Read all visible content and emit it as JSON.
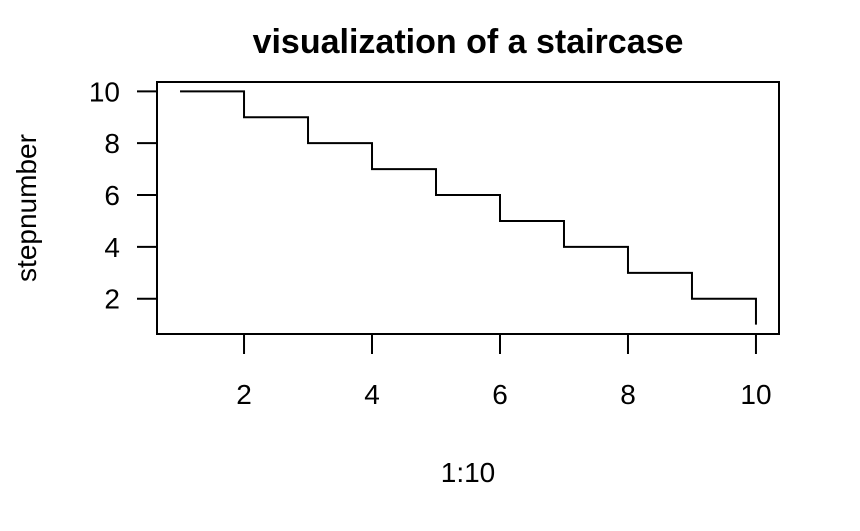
{
  "chart_data": {
    "type": "line",
    "title": "visualization of a staircase",
    "xlabel": "1:10",
    "ylabel": "stepnumber",
    "x": [
      1,
      2,
      3,
      4,
      5,
      6,
      7,
      8,
      9,
      10
    ],
    "series": [
      {
        "values": [
          10,
          9,
          8,
          7,
          6,
          5,
          4,
          3,
          2,
          1
        ]
      }
    ],
    "step": true,
    "xlim": [
      0.64,
      10.36
    ],
    "ylim": [
      0.64,
      10.36
    ],
    "xticks": [
      2,
      4,
      6,
      8,
      10
    ],
    "yticks": [
      2,
      4,
      6,
      8,
      10
    ],
    "grid": false,
    "legend": "none",
    "line_color": "#000000"
  }
}
